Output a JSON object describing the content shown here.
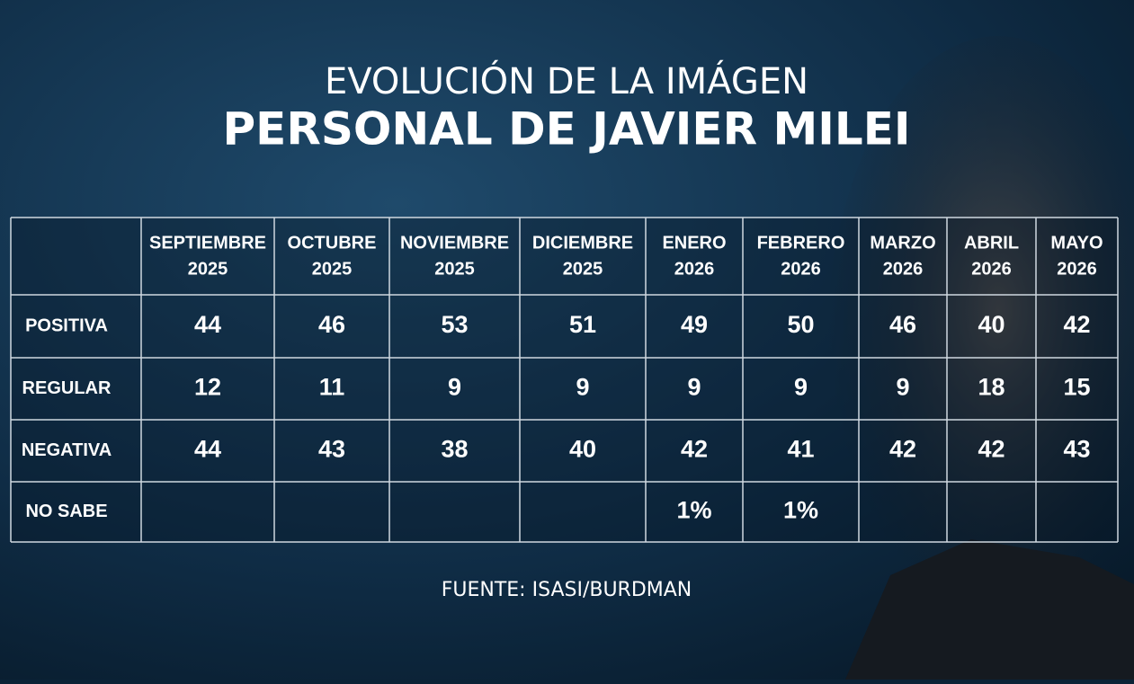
{
  "header": {
    "title_line1": "EVOLUCIÓN DE LA IMÁGEN",
    "title_line2": "PERSONAL DE JAVIER MILEI"
  },
  "table": {
    "columns": [
      {
        "month": "SEPTIEMBRE",
        "year": "2025"
      },
      {
        "month": "OCTUBRE",
        "year": "2025"
      },
      {
        "month": "NOVIEMBRE",
        "year": "2025"
      },
      {
        "month": "DICIEMBRE",
        "year": "2025"
      },
      {
        "month": "ENERO",
        "year": "2026"
      },
      {
        "month": "FEBRERO",
        "year": "2026"
      },
      {
        "month": "MARZO",
        "year": "2026"
      },
      {
        "month": "ABRIL",
        "year": "2026"
      },
      {
        "month": "MAYO",
        "year": "2026"
      }
    ],
    "rows": [
      {
        "label": "POSITIVA",
        "cells": [
          44,
          46,
          53,
          51,
          49,
          50,
          46,
          40,
          42
        ]
      },
      {
        "label": "REGULAR",
        "cells": [
          12,
          11,
          9,
          9,
          9,
          9,
          9,
          18,
          15
        ]
      },
      {
        "label": "NEGATIVA",
        "cells": [
          44,
          43,
          38,
          40,
          42,
          41,
          42,
          42,
          43
        ]
      },
      {
        "label": "NO SABE",
        "cells": [
          null,
          null,
          null,
          null,
          "1%",
          "1%",
          null,
          null,
          null
        ]
      }
    ]
  },
  "footer": {
    "source": "FUENTE: ISASI/BURDMAN"
  }
}
